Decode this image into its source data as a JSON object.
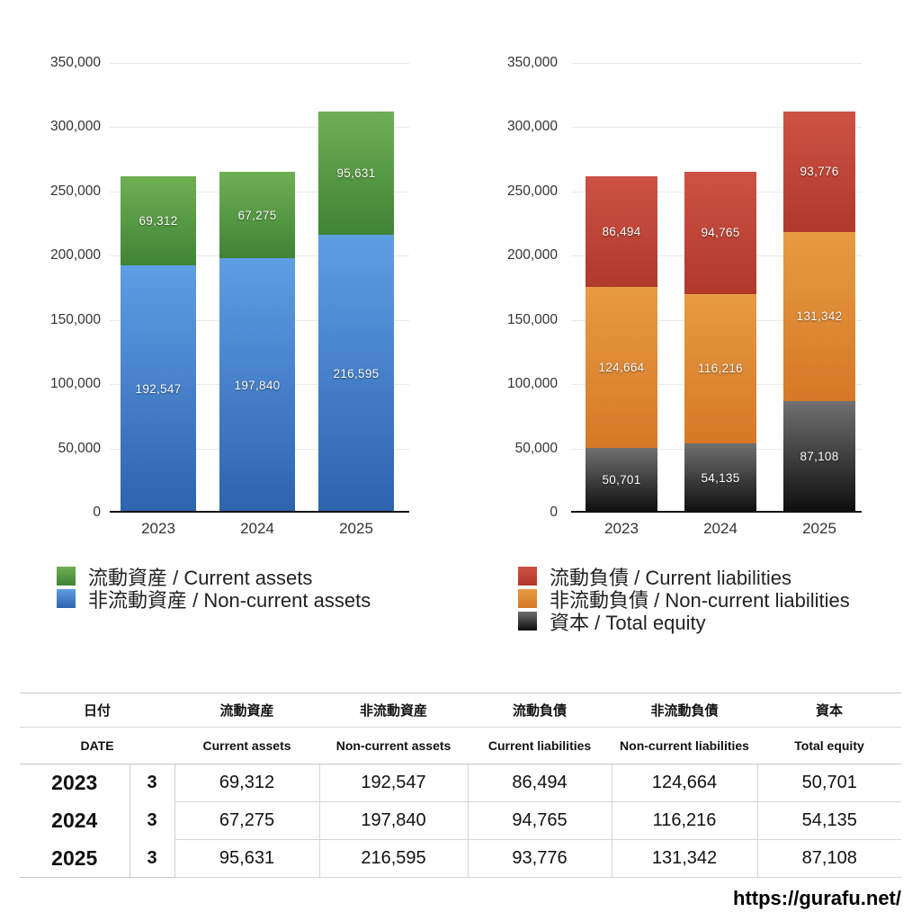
{
  "chart_data": [
    {
      "id": "assets",
      "type": "bar",
      "stacked": true,
      "title": "",
      "categories": [
        "2023",
        "2024",
        "2025"
      ],
      "y_ticks": [
        "350,000",
        "300,000",
        "250,000",
        "200,000",
        "150,000",
        "100,000",
        "50,000",
        "0"
      ],
      "ylim": [
        0,
        350000
      ],
      "grid": true,
      "legend_position": "bottom-left",
      "series": [
        {
          "key": "current-assets",
          "name": "流動資産 / Current assets",
          "values": [
            69312,
            67275,
            95631
          ],
          "labels": [
            "69,312",
            "67,275",
            "95,631"
          ],
          "color_top": "#6fb054",
          "color_bottom": "#3f8335"
        },
        {
          "key": "non-current-assets",
          "name": "非流動資産 / Non-current assets",
          "values": [
            192547,
            197840,
            216595
          ],
          "labels": [
            "192,547",
            "197,840",
            "216,595"
          ],
          "color_top": "#5e9ee3",
          "color_bottom": "#2e63ae"
        }
      ]
    },
    {
      "id": "liabilities-equity",
      "type": "bar",
      "stacked": true,
      "title": "",
      "categories": [
        "2023",
        "2024",
        "2025"
      ],
      "y_ticks": [
        "350,000",
        "300,000",
        "250,000",
        "200,000",
        "150,000",
        "100,000",
        "50,000",
        "0"
      ],
      "ylim": [
        0,
        350000
      ],
      "grid": true,
      "legend_position": "bottom-left",
      "series": [
        {
          "key": "current-liabilities",
          "name": "流動負債 / Current liabilities",
          "values": [
            86494,
            94765,
            93776
          ],
          "labels": [
            "86,494",
            "94,765",
            "93,776"
          ],
          "color_top": "#cd5244",
          "color_bottom": "#b0392b"
        },
        {
          "key": "non-current-liabilities",
          "name": "非流動負債 / Non-current liabilities",
          "values": [
            124664,
            116216,
            131342
          ],
          "labels": [
            "124,664",
            "116,216",
            "131,342"
          ],
          "color_top": "#e79b43",
          "color_bottom": "#d67827"
        },
        {
          "key": "total-equity",
          "name": "資本 / Total equity",
          "values": [
            50701,
            54135,
            87108
          ],
          "labels": [
            "50,701",
            "54,135",
            "87,108"
          ],
          "color_top": "#707070",
          "color_bottom": "#0d0d0d"
        }
      ]
    }
  ],
  "table": {
    "header_jp": {
      "date": "日付",
      "cols": [
        "流動資産",
        "非流動資産",
        "流動負債",
        "非流動負債",
        "資本"
      ]
    },
    "header_en": {
      "date": "DATE",
      "cols": [
        "Current assets",
        "Non-current assets",
        "Current liabilities",
        "Non-current liabilities",
        "Total equity"
      ]
    },
    "rows": [
      {
        "year": "2023",
        "month": "3",
        "values": [
          "69,312",
          "192,547",
          "86,494",
          "124,664",
          "50,701"
        ]
      },
      {
        "year": "2024",
        "month": "3",
        "values": [
          "67,275",
          "197,840",
          "94,765",
          "116,216",
          "54,135"
        ]
      },
      {
        "year": "2025",
        "month": "3",
        "values": [
          "95,631",
          "216,595",
          "93,776",
          "131,342",
          "87,108"
        ]
      }
    ]
  },
  "footer": {
    "url": "https://gurafu.net/"
  }
}
